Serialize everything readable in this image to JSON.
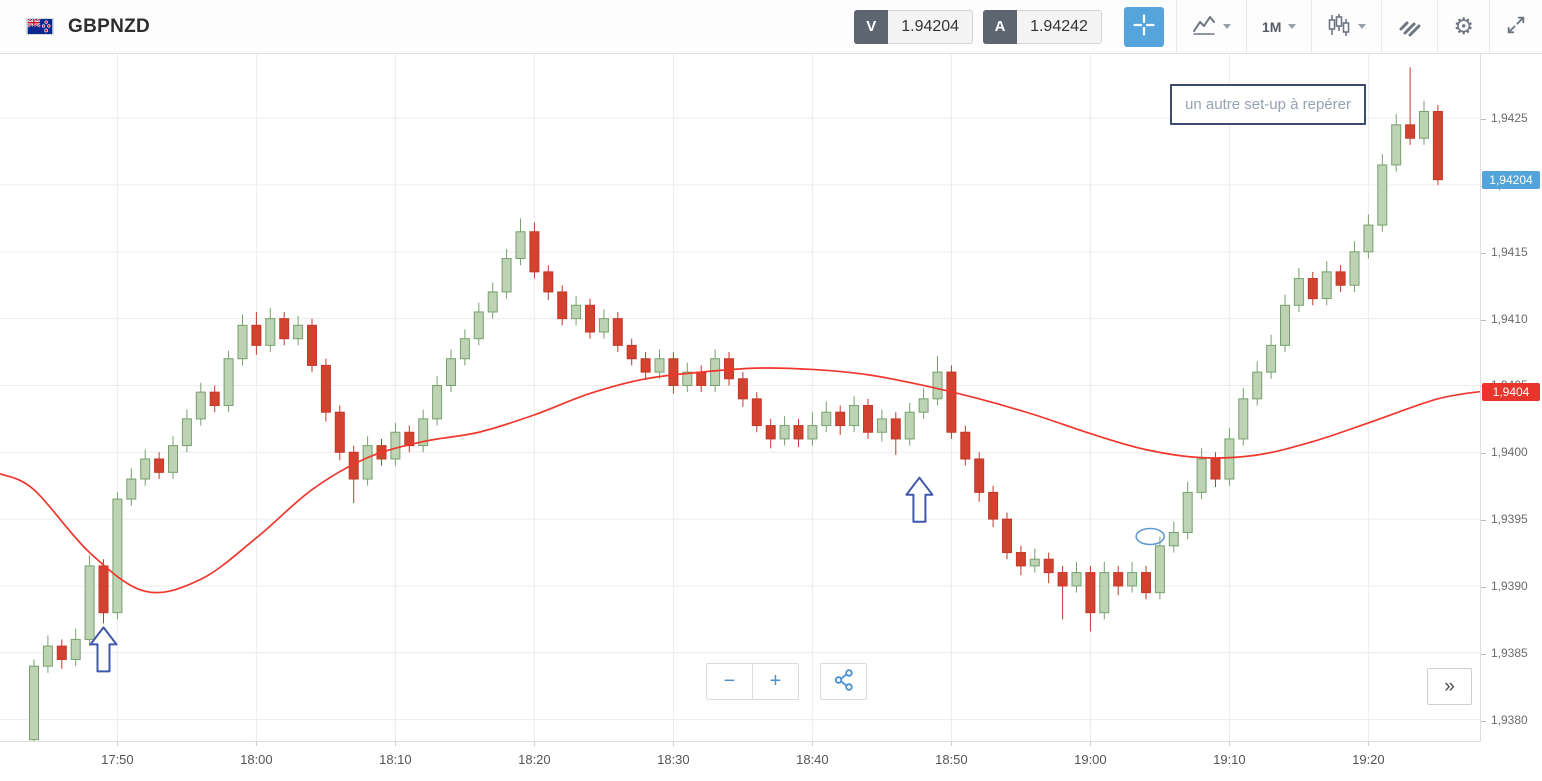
{
  "toolbar": {
    "instrument": "GBPNZD",
    "sell_button": "V",
    "sell_price": "1.94204",
    "buy_button": "A",
    "buy_price": "1.94242",
    "timeframe": "1M"
  },
  "controls": {
    "zoom_out_label": "−",
    "zoom_in_label": "+",
    "collapse_label": "»"
  },
  "chart_data": {
    "type": "candlestick",
    "instrument": "GBPNZD",
    "interval": "1M",
    "start_time": "17:44",
    "colors": {
      "up_fill": "#bdd3b4",
      "up_stroke": "#76a16d",
      "down_fill": "#d2422f",
      "down_stroke": "#c2392a",
      "grid": "#ececec",
      "ma": "#f0372e",
      "annotation": "#4157ad",
      "ellipse": "#5f9bd1",
      "current_price_tag": "#54a4dc",
      "ma_price_tag": "#e8352c"
    },
    "y_axis": {
      "min": 1.93784,
      "max": 1.94298,
      "ticks": [
        {
          "label": "1,9425",
          "value": 1.9425
        },
        {
          "label": "1,9420",
          "value": 1.942
        },
        {
          "label": "1,9415",
          "value": 1.9415
        },
        {
          "label": "1,9410",
          "value": 1.941
        },
        {
          "label": "1,9405",
          "value": 1.9405
        },
        {
          "label": "1,9400",
          "value": 1.94
        },
        {
          "label": "1,9395",
          "value": 1.9395
        },
        {
          "label": "1,9390",
          "value": 1.939
        },
        {
          "label": "1,9385",
          "value": 1.9385
        },
        {
          "label": "1,9380",
          "value": 1.938
        }
      ]
    },
    "x_gridlines": [
      {
        "label": "17:50",
        "i": 6
      },
      {
        "label": "18:00",
        "i": 16
      },
      {
        "label": "18:10",
        "i": 26
      },
      {
        "label": "18:20",
        "i": 36
      },
      {
        "label": "18:30",
        "i": 46
      },
      {
        "label": "18:40",
        "i": 56
      },
      {
        "label": "18:50",
        "i": 66
      },
      {
        "label": "19:00",
        "i": 76
      },
      {
        "label": "19:10",
        "i": 86
      },
      {
        "label": "19:20",
        "i": 96
      }
    ],
    "candles": [
      [
        1.93785,
        1.93845,
        1.9378,
        1.9384
      ],
      [
        1.9384,
        1.93863,
        1.93835,
        1.93855
      ],
      [
        1.93855,
        1.9386,
        1.93838,
        1.93845
      ],
      [
        1.93845,
        1.93868,
        1.9384,
        1.9386
      ],
      [
        1.9386,
        1.93923,
        1.93855,
        1.93915
      ],
      [
        1.93915,
        1.9392,
        1.93872,
        1.9388
      ],
      [
        1.9388,
        1.9397,
        1.93875,
        1.93965
      ],
      [
        1.93965,
        1.93988,
        1.9396,
        1.9398
      ],
      [
        1.9398,
        1.94002,
        1.93975,
        1.93995
      ],
      [
        1.93995,
        1.94,
        1.9398,
        1.93985
      ],
      [
        1.93985,
        1.94012,
        1.9398,
        1.94005
      ],
      [
        1.94005,
        1.94032,
        1.94,
        1.94025
      ],
      [
        1.94025,
        1.94052,
        1.9402,
        1.94045
      ],
      [
        1.94045,
        1.9405,
        1.9403,
        1.94035
      ],
      [
        1.94035,
        1.94076,
        1.9403,
        1.9407
      ],
      [
        1.9407,
        1.94103,
        1.94065,
        1.94095
      ],
      [
        1.94095,
        1.94105,
        1.94073,
        1.9408
      ],
      [
        1.9408,
        1.94108,
        1.94075,
        1.941
      ],
      [
        1.941,
        1.94105,
        1.9408,
        1.94085
      ],
      [
        1.94085,
        1.94102,
        1.9408,
        1.94095
      ],
      [
        1.94095,
        1.941,
        1.9406,
        1.94065
      ],
      [
        1.94065,
        1.9407,
        1.94023,
        1.9403
      ],
      [
        1.9403,
        1.94035,
        1.93994,
        1.94
      ],
      [
        1.94,
        1.94005,
        1.93962,
        1.9398
      ],
      [
        1.9398,
        1.94012,
        1.93975,
        1.94005
      ],
      [
        1.94005,
        1.9401,
        1.9399,
        1.93995
      ],
      [
        1.93995,
        1.94022,
        1.9399,
        1.94015
      ],
      [
        1.94015,
        1.9402,
        1.94,
        1.94005
      ],
      [
        1.94005,
        1.94032,
        1.94,
        1.94025
      ],
      [
        1.94025,
        1.94057,
        1.9402,
        1.9405
      ],
      [
        1.9405,
        1.94077,
        1.94045,
        1.9407
      ],
      [
        1.9407,
        1.94092,
        1.94065,
        1.94085
      ],
      [
        1.94085,
        1.94112,
        1.9408,
        1.94105
      ],
      [
        1.94105,
        1.94127,
        1.941,
        1.9412
      ],
      [
        1.9412,
        1.94152,
        1.94115,
        1.94145
      ],
      [
        1.94145,
        1.94175,
        1.9414,
        1.94165
      ],
      [
        1.94165,
        1.94172,
        1.9413,
        1.94135
      ],
      [
        1.94135,
        1.9414,
        1.94114,
        1.9412
      ],
      [
        1.9412,
        1.94125,
        1.94095,
        1.941
      ],
      [
        1.941,
        1.94117,
        1.94095,
        1.9411
      ],
      [
        1.9411,
        1.94115,
        1.94085,
        1.9409
      ],
      [
        1.9409,
        1.94107,
        1.94085,
        1.941
      ],
      [
        1.941,
        1.94105,
        1.94075,
        1.9408
      ],
      [
        1.9408,
        1.94085,
        1.94065,
        1.9407
      ],
      [
        1.9407,
        1.94075,
        1.94054,
        1.9406
      ],
      [
        1.9406,
        1.94077,
        1.94055,
        1.9407
      ],
      [
        1.9407,
        1.94075,
        1.94044,
        1.9405
      ],
      [
        1.9405,
        1.94067,
        1.94045,
        1.9406
      ],
      [
        1.9406,
        1.94065,
        1.94045,
        1.9405
      ],
      [
        1.9405,
        1.94077,
        1.94045,
        1.9407
      ],
      [
        1.9407,
        1.94075,
        1.9405,
        1.94055
      ],
      [
        1.94055,
        1.9406,
        1.94034,
        1.9404
      ],
      [
        1.9404,
        1.94045,
        1.94015,
        1.9402
      ],
      [
        1.9402,
        1.94025,
        1.94003,
        1.9401
      ],
      [
        1.9401,
        1.94027,
        1.94005,
        1.9402
      ],
      [
        1.9402,
        1.94025,
        1.94004,
        1.9401
      ],
      [
        1.9401,
        1.9403,
        1.94005,
        1.9402
      ],
      [
        1.9402,
        1.94038,
        1.94015,
        1.9403
      ],
      [
        1.9403,
        1.94035,
        1.94013,
        1.9402
      ],
      [
        1.9402,
        1.94042,
        1.94015,
        1.94035
      ],
      [
        1.94035,
        1.9404,
        1.9401,
        1.94015
      ],
      [
        1.94015,
        1.94032,
        1.94008,
        1.94025
      ],
      [
        1.94025,
        1.9403,
        1.93998,
        1.9401
      ],
      [
        1.9401,
        1.94037,
        1.94005,
        1.9403
      ],
      [
        1.9403,
        1.94048,
        1.94025,
        1.9404
      ],
      [
        1.9404,
        1.94072,
        1.94035,
        1.9406
      ],
      [
        1.9406,
        1.94065,
        1.9401,
        1.94015
      ],
      [
        1.94015,
        1.9402,
        1.9399,
        1.93995
      ],
      [
        1.93995,
        1.94,
        1.93963,
        1.9397
      ],
      [
        1.9397,
        1.93975,
        1.93944,
        1.9395
      ],
      [
        1.9395,
        1.93955,
        1.9392,
        1.93925
      ],
      [
        1.93925,
        1.9393,
        1.93908,
        1.93915
      ],
      [
        1.93915,
        1.93928,
        1.9391,
        1.9392
      ],
      [
        1.9392,
        1.93925,
        1.93902,
        1.9391
      ],
      [
        1.9391,
        1.93915,
        1.93875,
        1.939
      ],
      [
        1.939,
        1.93918,
        1.93895,
        1.9391
      ],
      [
        1.9391,
        1.93915,
        1.93866,
        1.9388
      ],
      [
        1.9388,
        1.93918,
        1.93875,
        1.9391
      ],
      [
        1.9391,
        1.93915,
        1.93893,
        1.939
      ],
      [
        1.939,
        1.93918,
        1.93895,
        1.9391
      ],
      [
        1.9391,
        1.93915,
        1.9389,
        1.93895
      ],
      [
        1.93895,
        1.93937,
        1.9389,
        1.9393
      ],
      [
        1.9393,
        1.93948,
        1.93925,
        1.9394
      ],
      [
        1.9394,
        1.93978,
        1.93935,
        1.9397
      ],
      [
        1.9397,
        1.94003,
        1.93965,
        1.93995
      ],
      [
        1.93995,
        1.94,
        1.93974,
        1.9398
      ],
      [
        1.9398,
        1.94018,
        1.93975,
        1.9401
      ],
      [
        1.9401,
        1.94048,
        1.94005,
        1.9404
      ],
      [
        1.9404,
        1.94068,
        1.94035,
        1.9406
      ],
      [
        1.9406,
        1.94088,
        1.94055,
        1.9408
      ],
      [
        1.9408,
        1.94118,
        1.94075,
        1.9411
      ],
      [
        1.9411,
        1.94138,
        1.94105,
        1.9413
      ],
      [
        1.9413,
        1.94135,
        1.9411,
        1.94115
      ],
      [
        1.94115,
        1.94143,
        1.9411,
        1.94135
      ],
      [
        1.94135,
        1.9414,
        1.9412,
        1.94125
      ],
      [
        1.94125,
        1.94158,
        1.9412,
        1.9415
      ],
      [
        1.9415,
        1.94178,
        1.94145,
        1.9417
      ],
      [
        1.9417,
        1.94223,
        1.94165,
        1.94215
      ],
      [
        1.94215,
        1.94253,
        1.9421,
        1.94245
      ],
      [
        1.94245,
        1.94288,
        1.9423,
        1.94235
      ],
      [
        1.94235,
        1.94263,
        1.9423,
        1.94255
      ],
      [
        1.94255,
        1.9426,
        1.942,
        1.94204
      ]
    ],
    "ma_line": {
      "name": "moving-average",
      "points": [
        [
          -2.5,
          1.93984
        ],
        [
          0,
          1.93972
        ],
        [
          4,
          1.93925
        ],
        [
          8,
          1.93896
        ],
        [
          12,
          1.93905
        ],
        [
          16,
          1.93936
        ],
        [
          20,
          1.93972
        ],
        [
          24,
          1.93996
        ],
        [
          28,
          1.94008
        ],
        [
          32,
          1.94015
        ],
        [
          36,
          1.94028
        ],
        [
          40,
          1.94044
        ],
        [
          44,
          1.94055
        ],
        [
          48,
          1.9406
        ],
        [
          52,
          1.94063
        ],
        [
          56,
          1.94062
        ],
        [
          60,
          1.94058
        ],
        [
          64,
          1.9405
        ],
        [
          68,
          1.9404
        ],
        [
          72,
          1.94028
        ],
        [
          76,
          1.94014
        ],
        [
          80,
          1.94002
        ],
        [
          84,
          1.93996
        ],
        [
          88,
          1.93998
        ],
        [
          92,
          1.94008
        ],
        [
          96,
          1.94022
        ],
        [
          101,
          1.9404
        ],
        [
          104.5,
          1.94046
        ]
      ]
    },
    "current_price": {
      "label": "1,94204",
      "value": 1.94204
    },
    "ma_price": {
      "label": "1,9404",
      "value": 1.94045
    },
    "annotations": {
      "arrows": [
        {
          "i": 5,
          "tip_price": 1.93869
        },
        {
          "i": 63.7,
          "tip_price": 1.93981
        }
      ],
      "ellipse": {
        "i": 80.3,
        "price": 1.93937,
        "rx": 14,
        "ry": 8
      },
      "note": {
        "text": "un autre set-up à repérer"
      }
    }
  }
}
